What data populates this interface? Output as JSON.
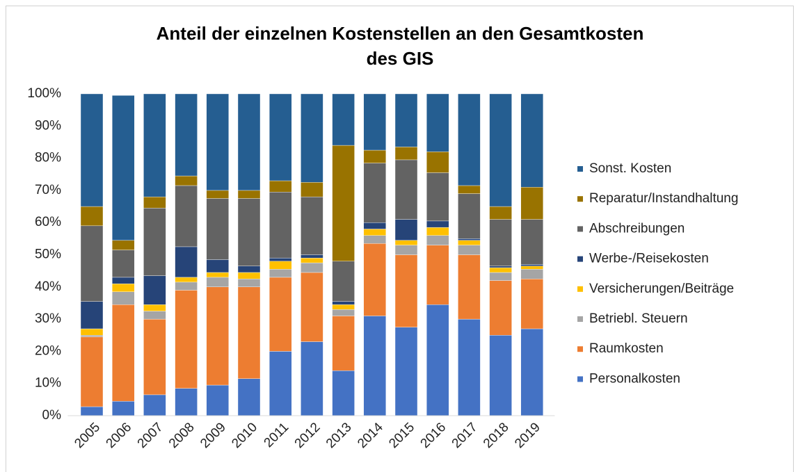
{
  "chart_data": {
    "type": "stacked_bar",
    "title": [
      "Anteil der einzelnen Kostenstellen an den Gesamtkosten",
      "des GIS"
    ],
    "categories": [
      "2005",
      "2006",
      "2007",
      "2008",
      "2009",
      "2010",
      "2011",
      "2012",
      "2013",
      "2014",
      "2015",
      "2016",
      "2017",
      "2018",
      "2019"
    ],
    "series": [
      {
        "name": "Personalkosten",
        "color": "#4472c4",
        "values": [
          2.8,
          4.5,
          6.5,
          8.5,
          9.5,
          11.5,
          20,
          23,
          14,
          31,
          27.5,
          34.5,
          30,
          25,
          27
        ]
      },
      {
        "name": "Raumkosten",
        "color": "#ed7d31",
        "values": [
          21.7,
          30,
          23.5,
          30.5,
          30.5,
          28.5,
          23,
          21.5,
          17,
          22.5,
          22.5,
          18.5,
          20,
          17,
          15.5
        ]
      },
      {
        "name": "Betriebl. Steuern",
        "color": "#a5a5a5",
        "values": [
          0.5,
          4,
          2.5,
          2.5,
          3,
          2.5,
          2.5,
          3,
          2,
          2.5,
          3,
          3,
          3,
          2.5,
          3
        ]
      },
      {
        "name": "Versicherungen/Beiträge",
        "color": "#ffc000",
        "values": [
          2,
          2.5,
          2,
          1.5,
          1.5,
          2,
          2.5,
          1.5,
          1.5,
          2,
          1.5,
          2.5,
          1.5,
          1.5,
          1
        ]
      },
      {
        "name": "Werbe-/Reisekosten",
        "color": "#264478",
        "values": [
          8.5,
          2,
          9,
          9.5,
          4,
          2,
          1,
          1,
          1,
          2,
          6.5,
          2,
          0.5,
          0.5,
          0.5
        ]
      },
      {
        "name": "Abschreibungen",
        "color": "#636363",
        "values": [
          23.5,
          8.5,
          21,
          19,
          19,
          21,
          20.5,
          18,
          12.5,
          18.5,
          18.5,
          15,
          14,
          14.5,
          14
        ]
      },
      {
        "name": "Reparatur/Instandhaltung",
        "color": "#997300",
        "values": [
          6,
          3,
          3.5,
          3,
          2.5,
          2.5,
          3.5,
          4.5,
          36,
          4,
          4,
          6.5,
          2.5,
          4,
          10
        ]
      },
      {
        "name": "Sonst. Kosten",
        "color": "#255e91",
        "values": [
          35,
          45,
          32,
          25.5,
          30,
          30,
          27,
          27.5,
          16,
          17.5,
          16.5,
          18,
          28.5,
          35,
          29
        ]
      }
    ],
    "ylim": [
      0,
      100
    ],
    "yticks": [
      {
        "value": 0,
        "label": "0%"
      },
      {
        "value": 10,
        "label": "10%"
      },
      {
        "value": 20,
        "label": "20%"
      },
      {
        "value": 30,
        "label": "30%"
      },
      {
        "value": 40,
        "label": "40%"
      },
      {
        "value": 50,
        "label": "50%"
      },
      {
        "value": 60,
        "label": "60%"
      },
      {
        "value": 70,
        "label": "70%"
      },
      {
        "value": 80,
        "label": "80%"
      },
      {
        "value": 90,
        "label": "90%"
      },
      {
        "value": 100,
        "label": "100%"
      }
    ],
    "legend": "right"
  }
}
